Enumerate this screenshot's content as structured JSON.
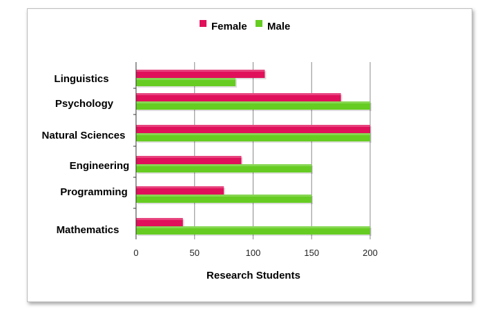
{
  "chart_data": {
    "type": "bar",
    "orientation": "horizontal",
    "categories": [
      "Linguistics",
      "Psychology",
      "Natural Sciences",
      "Engineering",
      "Programming",
      "Mathematics"
    ],
    "series": [
      {
        "name": "Female",
        "color": "#e0105a",
        "values": [
          110,
          175,
          200,
          90,
          75,
          40
        ]
      },
      {
        "name": "Male",
        "color": "#66cc22",
        "values": [
          85,
          200,
          200,
          150,
          150,
          200
        ]
      }
    ],
    "xlabel": "Research Students",
    "ylabel": "",
    "xlim": [
      0,
      200
    ],
    "xticks": [
      "0",
      "50",
      "100",
      "150",
      "200"
    ],
    "grid": true,
    "legend_position": "top"
  }
}
